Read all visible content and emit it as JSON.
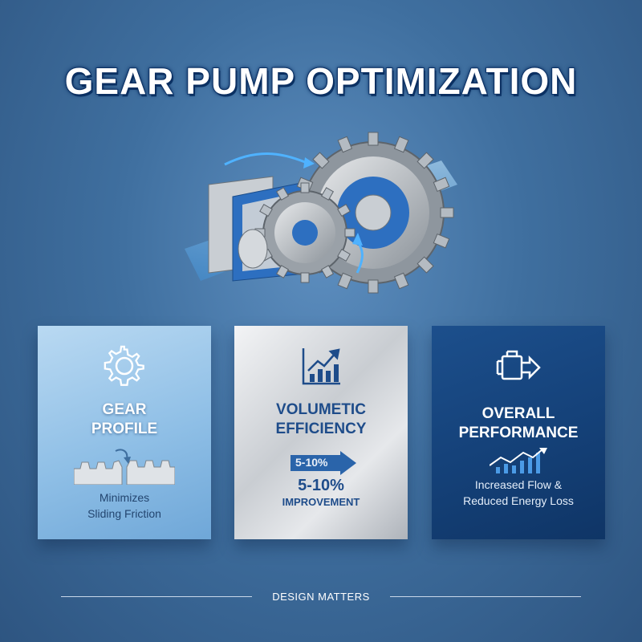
{
  "title": "GEAR PUMP OPTIMIZATION",
  "cards": [
    {
      "icon": "gear-icon",
      "title_lines": [
        "GEAR",
        "PROFILE"
      ],
      "text_lines": [
        "Minimizes",
        "Sliding Friction"
      ],
      "illustration": "meshing-gears-icon"
    },
    {
      "icon": "bar-chart-trend-icon",
      "title_lines": [
        "VOLUMETIC",
        "EFFICIENCY"
      ],
      "badge": "5-10%",
      "value": "5-10%",
      "value_label": "IMPROVEMENT"
    },
    {
      "icon": "pump-motor-icon",
      "title_lines": [
        "OVERALL",
        "PERFORMANCE"
      ],
      "text_lines": [
        "Increased Flow &",
        "Reduced Energy Loss"
      ],
      "illustration": "growth-chart-icon"
    }
  ],
  "footer": "DESIGN MATTERS",
  "colors": {
    "background": "#3f6f9f",
    "accent_blue": "#1e4c8a",
    "card_light": "#8fbfe6",
    "card_dark": "#15427a"
  }
}
